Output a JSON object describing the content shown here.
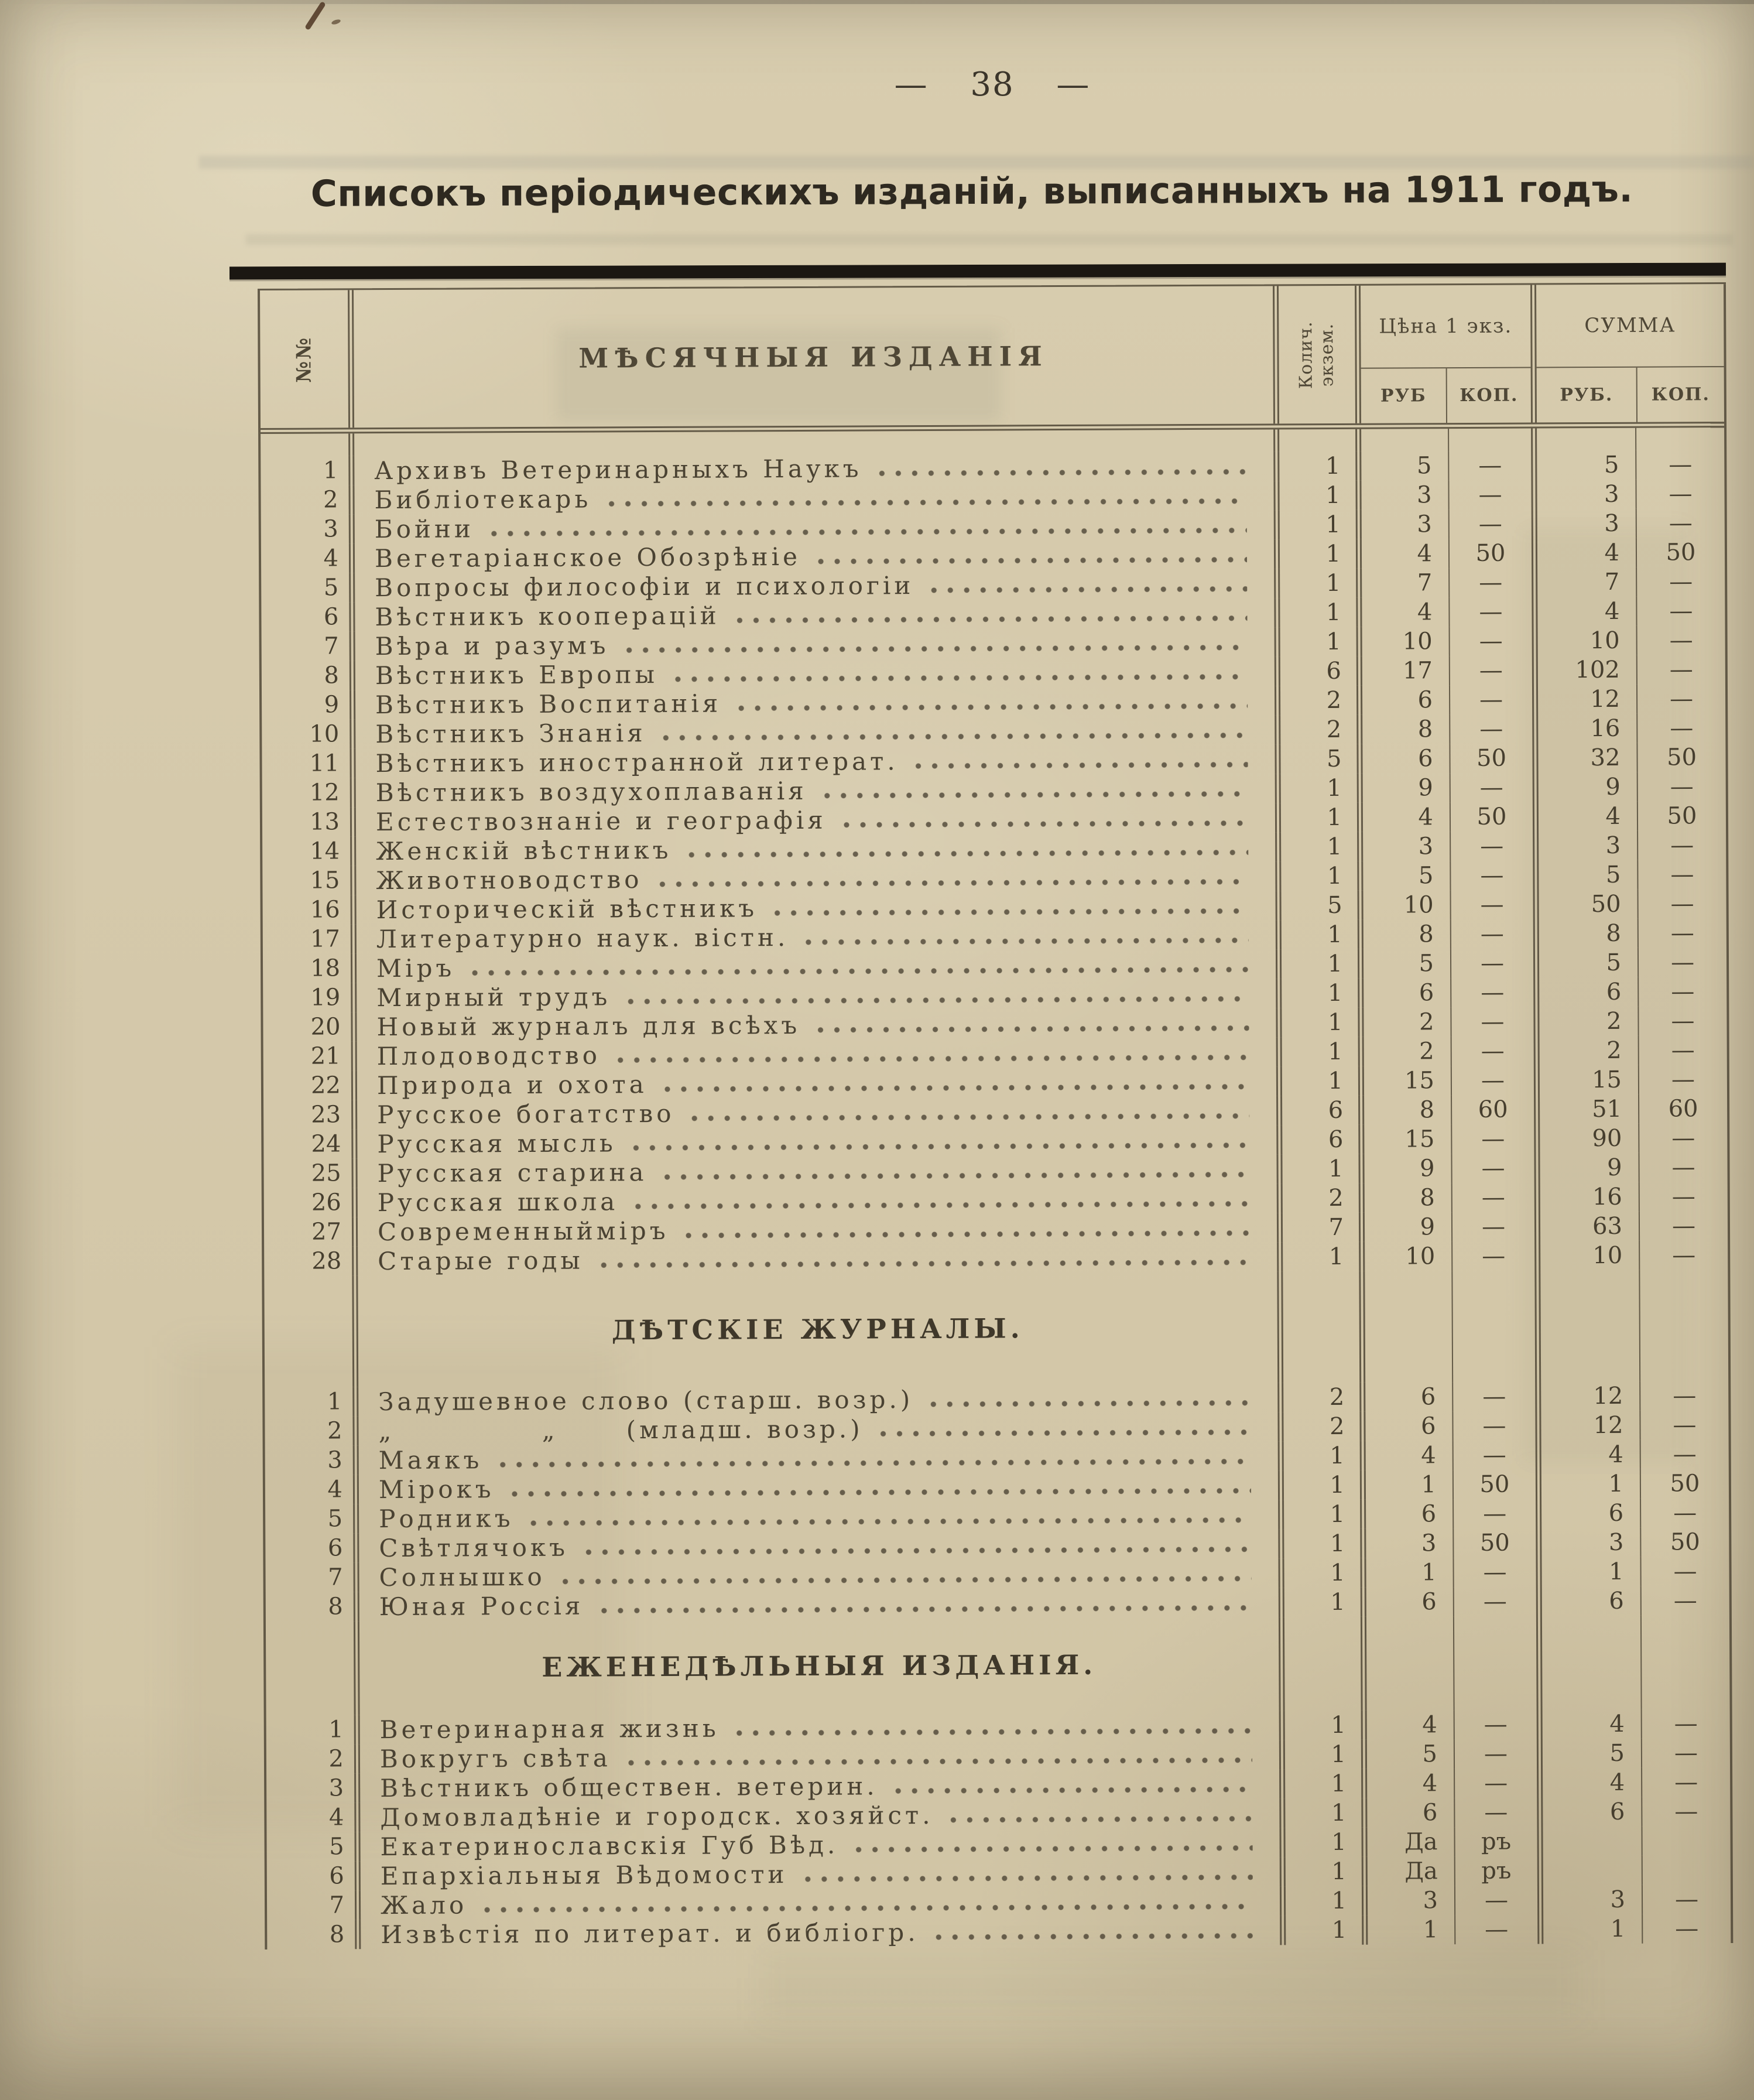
{
  "ink_colors": {
    "paper": "#d5c9aa",
    "text_ink": "#473f2f",
    "heavy_rule": "#1b1712",
    "pen_mark": "#4e3522"
  },
  "page": {
    "number_display": "—  38  —",
    "title": "Списокъ періодическихъ изданій, выписанныхъ на 1911 годъ."
  },
  "table": {
    "header": {
      "num": "№№",
      "name": "МѢСЯЧНЫЯ ИЗДАНІЯ",
      "qty": "Колич.\nэкзем.",
      "price_group": "Цѣна 1 экз.",
      "sum_group": "СУММА",
      "price_rub": "РУБ",
      "price_kop": "КОП.",
      "sum_rub": "РУБ.",
      "sum_kop": "КОП."
    },
    "sections": [
      {
        "title": null,
        "rows": [
          {
            "n": "1",
            "t": "Архивъ Ветеринарныхъ Наукъ",
            "q": "1",
            "pr": "5",
            "pk": "—",
            "sr": "5",
            "sk": "—"
          },
          {
            "n": "2",
            "t": "Библіотекарь",
            "q": "1",
            "pr": "3",
            "pk": "—",
            "sr": "3",
            "sk": "—"
          },
          {
            "n": "3",
            "t": "Бойни",
            "q": "1",
            "pr": "3",
            "pk": "—",
            "sr": "3",
            "sk": "—"
          },
          {
            "n": "4",
            "t": "Вегетаріанское Обозрѣніе",
            "q": "1",
            "pr": "4",
            "pk": "50",
            "sr": "4",
            "sk": "50"
          },
          {
            "n": "5",
            "t": "Вопросы философіи и психологіи",
            "q": "1",
            "pr": "7",
            "pk": "—",
            "sr": "7",
            "sk": "—"
          },
          {
            "n": "6",
            "t": "Вѣстникъ кооперацій",
            "q": "1",
            "pr": "4",
            "pk": "—",
            "sr": "4",
            "sk": "—"
          },
          {
            "n": "7",
            "t": "Вѣра и разумъ",
            "q": "1",
            "pr": "10",
            "pk": "—",
            "sr": "10",
            "sk": "—"
          },
          {
            "n": "8",
            "t": "Вѣстникъ Европы",
            "q": "6",
            "pr": "17",
            "pk": "—",
            "sr": "102",
            "sk": "—"
          },
          {
            "n": "9",
            "t": "Вѣстникъ Воспитанія",
            "q": "2",
            "pr": "6",
            "pk": "—",
            "sr": "12",
            "sk": "—"
          },
          {
            "n": "10",
            "t": "Вѣстникъ Знанія",
            "q": "2",
            "pr": "8",
            "pk": "—",
            "sr": "16",
            "sk": "—"
          },
          {
            "n": "11",
            "t": "Вѣстникъ иностранной литерат.",
            "q": "5",
            "pr": "6",
            "pk": "50",
            "sr": "32",
            "sk": "50"
          },
          {
            "n": "12",
            "t": "Вѣстникъ воздухоплаванія",
            "q": "1",
            "pr": "9",
            "pk": "—",
            "sr": "9",
            "sk": "—"
          },
          {
            "n": "13",
            "t": "Естествознаніе и географія",
            "q": "1",
            "pr": "4",
            "pk": "50",
            "sr": "4",
            "sk": "50"
          },
          {
            "n": "14",
            "t": "Женскій вѣстникъ",
            "q": "1",
            "pr": "3",
            "pk": "—",
            "sr": "3",
            "sk": "—"
          },
          {
            "n": "15",
            "t": "Животноводство",
            "q": "1",
            "pr": "5",
            "pk": "—",
            "sr": "5",
            "sk": "—"
          },
          {
            "n": "16",
            "t": "Историческій вѣстникъ",
            "q": "5",
            "pr": "10",
            "pk": "—",
            "sr": "50",
            "sk": "—"
          },
          {
            "n": "17",
            "t": "Литературно наук. вістн.",
            "q": "1",
            "pr": "8",
            "pk": "—",
            "sr": "8",
            "sk": "—"
          },
          {
            "n": "18",
            "t": "Міръ",
            "q": "1",
            "pr": "5",
            "pk": "—",
            "sr": "5",
            "sk": "—"
          },
          {
            "n": "19",
            "t": "Мирный трудъ",
            "q": "1",
            "pr": "6",
            "pk": "—",
            "sr": "6",
            "sk": "—"
          },
          {
            "n": "20",
            "t": "Новый журналъ для всѣхъ",
            "q": "1",
            "pr": "2",
            "pk": "—",
            "sr": "2",
            "sk": "—"
          },
          {
            "n": "21",
            "t": "Плодоводство",
            "q": "1",
            "pr": "2",
            "pk": "—",
            "sr": "2",
            "sk": "—"
          },
          {
            "n": "22",
            "t": "Природа и охота",
            "q": "1",
            "pr": "15",
            "pk": "—",
            "sr": "15",
            "sk": "—"
          },
          {
            "n": "23",
            "t": "Русское богатство",
            "q": "6",
            "pr": "8",
            "pk": "60",
            "sr": "51",
            "sk": "60"
          },
          {
            "n": "24",
            "t": "Русская мысль",
            "q": "6",
            "pr": "15",
            "pk": "—",
            "sr": "90",
            "sk": "—"
          },
          {
            "n": "25",
            "t": "Русская старина",
            "q": "1",
            "pr": "9",
            "pk": "—",
            "sr": "9",
            "sk": "—"
          },
          {
            "n": "26",
            "t": "Русская школа",
            "q": "2",
            "pr": "8",
            "pk": "—",
            "sr": "16",
            "sk": "—"
          },
          {
            "n": "27",
            "t": "Современныйміръ",
            "q": "7",
            "pr": "9",
            "pk": "—",
            "sr": "63",
            "sk": "—"
          },
          {
            "n": "28",
            "t": "Старые годы",
            "q": "1",
            "pr": "10",
            "pk": "—",
            "sr": "10",
            "sk": "—"
          }
        ]
      },
      {
        "title": "ДѢТСКІЕ ЖУРНАЛЫ.",
        "rows": [
          {
            "n": "1",
            "t": "Задушевное слово (старш. возр.)",
            "q": "2",
            "pr": "6",
            "pk": "—",
            "sr": "12",
            "sk": "—"
          },
          {
            "n": "2",
            "t": "„             „      (младш. возр.)",
            "q": "2",
            "pr": "6",
            "pk": "—",
            "sr": "12",
            "sk": "—"
          },
          {
            "n": "3",
            "t": "Маякъ",
            "q": "1",
            "pr": "4",
            "pk": "—",
            "sr": "4",
            "sk": "—"
          },
          {
            "n": "4",
            "t": "Мірокъ",
            "q": "1",
            "pr": "1",
            "pk": "50",
            "sr": "1",
            "sk": "50"
          },
          {
            "n": "5",
            "t": "Родникъ",
            "q": "1",
            "pr": "6",
            "pk": "—",
            "sr": "6",
            "sk": "—"
          },
          {
            "n": "6",
            "t": "Свѣтлячокъ",
            "q": "1",
            "pr": "3",
            "pk": "50",
            "sr": "3",
            "sk": "50"
          },
          {
            "n": "7",
            "t": "Солнышко",
            "q": "1",
            "pr": "1",
            "pk": "—",
            "sr": "1",
            "sk": "—"
          },
          {
            "n": "8",
            "t": "Юная Россія",
            "q": "1",
            "pr": "6",
            "pk": "—",
            "sr": "6",
            "sk": "—"
          }
        ]
      },
      {
        "title": "ЕЖЕНЕДѢЛЬНЫЯ ИЗДАНІЯ.",
        "rows": [
          {
            "n": "1",
            "t": "Ветеринарная жизнь",
            "q": "1",
            "pr": "4",
            "pk": "—",
            "sr": "4",
            "sk": "—"
          },
          {
            "n": "2",
            "t": "Вокругъ свѣта",
            "q": "1",
            "pr": "5",
            "pk": "—",
            "sr": "5",
            "sk": "—"
          },
          {
            "n": "3",
            "t": "Вѣстникъ обществен. ветерин.",
            "q": "1",
            "pr": "4",
            "pk": "—",
            "sr": "4",
            "sk": "—"
          },
          {
            "n": "4",
            "t": "Домовладѣніе и городск. хозяйст.",
            "q": "1",
            "pr": "6",
            "pk": "—",
            "sr": "6",
            "sk": "—"
          },
          {
            "n": "5",
            "t": "Екатеринославскія Губ Вѣд.",
            "q": "1",
            "pr": "Да",
            "pk": "ръ",
            "sr": "",
            "sk": ""
          },
          {
            "n": "6",
            "t": "Епархіальныя Вѣдомости",
            "q": "1",
            "pr": "Да",
            "pk": "ръ",
            "sr": "",
            "sk": ""
          },
          {
            "n": "7",
            "t": "Жало",
            "q": "1",
            "pr": "3",
            "pk": "—",
            "sr": "3",
            "sk": "—"
          },
          {
            "n": "8",
            "t": "Извѣстія по литерат. и библіогр.",
            "q": "1",
            "pr": "1",
            "pk": "—",
            "sr": "1",
            "sk": "—"
          }
        ]
      }
    ]
  }
}
